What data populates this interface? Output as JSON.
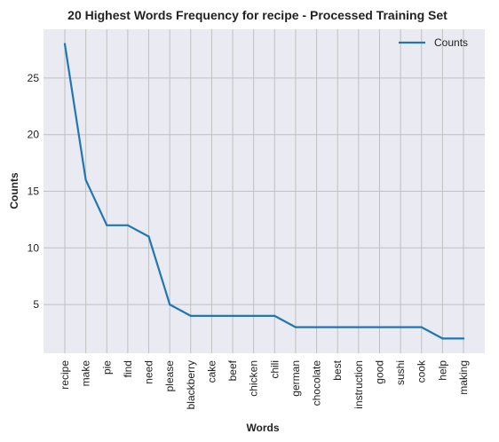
{
  "chart_data": {
    "type": "line",
    "title": "20 Highest Words Frequency for recipe - Processed Training Set",
    "xlabel": "Words",
    "ylabel": "Counts",
    "categories": [
      "recipe",
      "make",
      "pie",
      "find",
      "need",
      "please",
      "blackberry",
      "cake",
      "beef",
      "chicken",
      "chili",
      "german",
      "chocolate",
      "best",
      "instruction",
      "good",
      "sushi",
      "cook",
      "help",
      "making"
    ],
    "series": [
      {
        "name": "Counts",
        "values": [
          28,
          16,
          12,
          12,
          11,
          5,
          4,
          4,
          4,
          4,
          4,
          3,
          3,
          3,
          3,
          3,
          3,
          3,
          2,
          2
        ],
        "color": "#1f77b4"
      }
    ],
    "yticks": [
      5,
      10,
      15,
      20,
      25
    ],
    "ylim": [
      0.7,
      29.3
    ],
    "grid": true,
    "legend_position": "top-right",
    "background_color": "#eaeaf2",
    "grid_color": "#c0c0c0"
  }
}
